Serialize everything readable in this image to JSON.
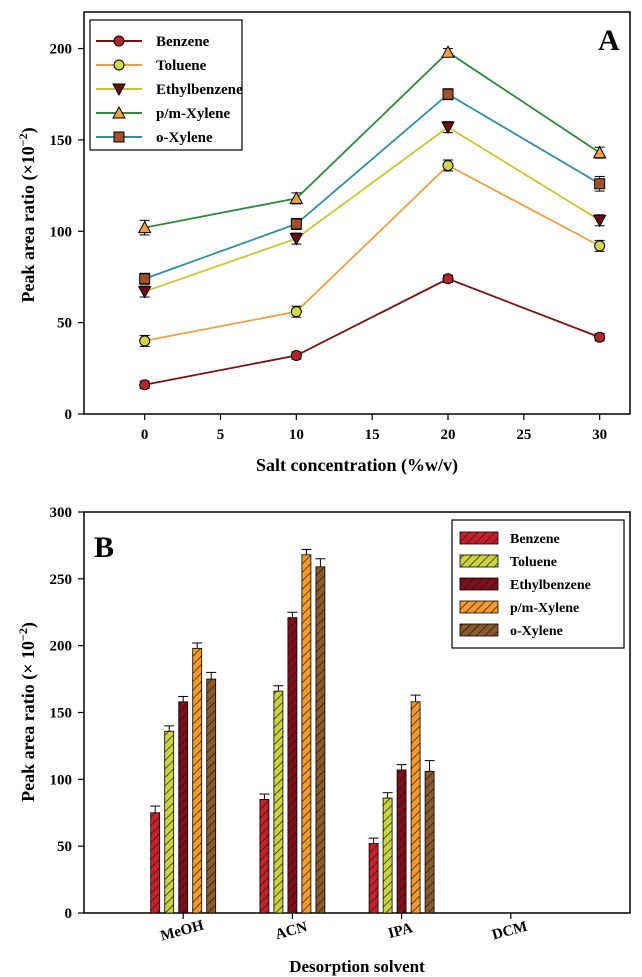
{
  "chart_data": [
    {
      "type": "line",
      "panel_label": "A",
      "xlabel": "Salt concentration (%w/v)",
      "ylabel_main": "Peak area ratio (×10",
      "ylabel_exp": "−2",
      "ylabel_close": ")",
      "xlim": [
        -4,
        32
      ],
      "ylim": [
        0,
        220
      ],
      "xticks": [
        0,
        5,
        10,
        15,
        20,
        25,
        30
      ],
      "yticks": [
        0,
        50,
        100,
        150,
        200
      ],
      "x": [
        0,
        10,
        20,
        30
      ],
      "legend_position": "top-left",
      "series": [
        {
          "name": "Benzene",
          "values": [
            16,
            32,
            74,
            42
          ],
          "errors": [
            2,
            2,
            2,
            2
          ],
          "line_color": "#7a1212",
          "marker_fill": "#b3262c",
          "marker": "circle"
        },
        {
          "name": "Toluene",
          "values": [
            40,
            56,
            136,
            92
          ],
          "errors": [
            3,
            3,
            3,
            3
          ],
          "line_color": "#f0a040",
          "marker_fill": "#cfd84a",
          "marker": "circle"
        },
        {
          "name": "Ethylbenzene",
          "values": [
            67,
            96,
            157,
            106
          ],
          "errors": [
            3,
            3,
            3,
            3
          ],
          "line_color": "#c8c830",
          "marker_fill": "#6b0f12",
          "marker": "triangle-down"
        },
        {
          "name": "p/m-Xylene",
          "values": [
            102,
            118,
            198,
            143
          ],
          "errors": [
            4,
            3,
            2,
            3
          ],
          "line_color": "#2e8b3a",
          "marker_fill": "#f5a042",
          "marker": "triangle-up"
        },
        {
          "name": "o-Xylene",
          "values": [
            74,
            104,
            175,
            126
          ],
          "errors": [
            3,
            3,
            3,
            4
          ],
          "line_color": "#2f8fa3",
          "marker_fill": "#a0522d",
          "marker": "square"
        }
      ]
    },
    {
      "type": "bar",
      "panel_label": "B",
      "xlabel": "Desorption solvent",
      "ylabel_main": "Peak area ratio (× 10",
      "ylabel_exp": "−2",
      "ylabel_close": ")",
      "ylim": [
        0,
        300
      ],
      "yticks": [
        0,
        50,
        100,
        150,
        200,
        250,
        300
      ],
      "categories": [
        "MeOH",
        "ACN",
        "IPA",
        "DCM"
      ],
      "legend_position": "top-right",
      "series": [
        {
          "name": "Benzene",
          "values": [
            75,
            85,
            52,
            0
          ],
          "errors": [
            5,
            4,
            4,
            0
          ],
          "color": "#c8202a"
        },
        {
          "name": "Toluene",
          "values": [
            136,
            166,
            86,
            0
          ],
          "errors": [
            4,
            4,
            4,
            0
          ],
          "color": "#c8d440"
        },
        {
          "name": "Ethylbenzene",
          "values": [
            158,
            221,
            107,
            0
          ],
          "errors": [
            4,
            4,
            4,
            0
          ],
          "color": "#800e1a"
        },
        {
          "name": "p/m-Xylene",
          "values": [
            198,
            268,
            158,
            0
          ],
          "errors": [
            4,
            4,
            5,
            0
          ],
          "color": "#f59a2a"
        },
        {
          "name": "o-Xylene",
          "values": [
            175,
            259,
            106,
            0
          ],
          "errors": [
            5,
            6,
            8,
            0
          ],
          "color": "#8b5a2b"
        }
      ]
    }
  ]
}
